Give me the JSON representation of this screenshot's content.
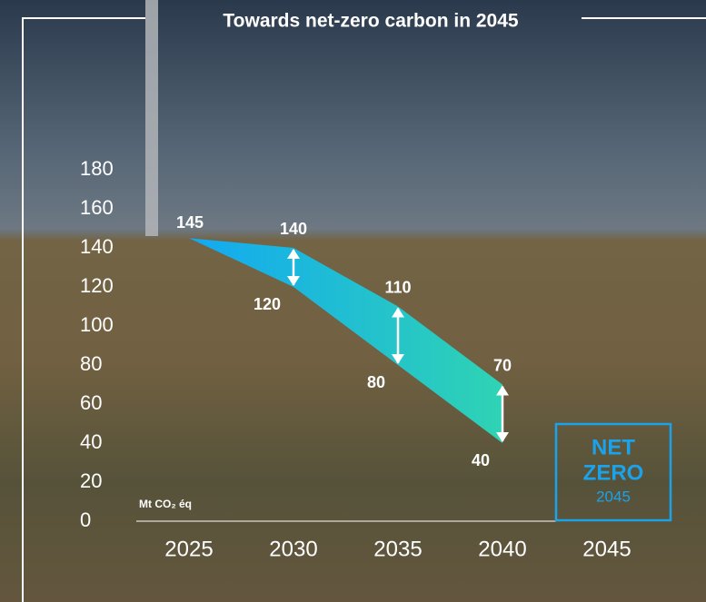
{
  "chart_data": {
    "type": "range-area",
    "title": "Towards net-zero carbon in 2045",
    "unit_label": "Mt CO₂ éq",
    "categories": [
      "2025",
      "2030",
      "2035",
      "2040",
      "2045"
    ],
    "upper": [
      145,
      140,
      110,
      70,
      null
    ],
    "lower": [
      145,
      120,
      80,
      40,
      null
    ],
    "colors": [
      "#12a9f2",
      "#2fd3b3"
    ],
    "ylim": [
      0,
      180
    ],
    "yticks": [
      0,
      20,
      40,
      60,
      80,
      100,
      120,
      140,
      160,
      180
    ],
    "badge": {
      "line1": "NET",
      "line2": "ZERO",
      "year": "2045"
    }
  }
}
